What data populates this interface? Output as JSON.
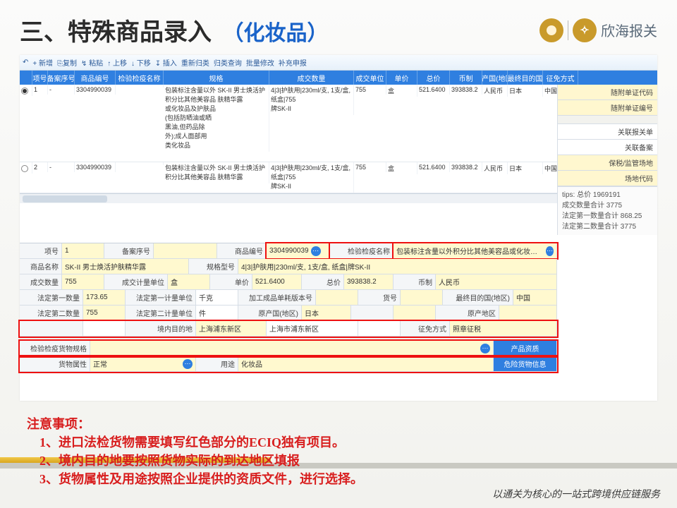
{
  "page_title": {
    "main": "三、特殊商品录入",
    "sub": "（化妆品）"
  },
  "brand": "欣海报关",
  "toolbar": [
    "↶",
    "+ 新增",
    "⎘复制",
    "↯ 粘贴",
    "↑ 上移",
    "↓ 下移",
    "↧ 插入",
    "重新归类",
    "归类查询",
    "批量修改",
    "补充申报"
  ],
  "columns": [
    "",
    "项号",
    "备案序号",
    "商品编号",
    "检验检疫名称",
    "规格",
    "成交数量",
    "成交单位",
    "单价",
    "总价",
    "币制",
    "原产国(地区)",
    "最终目的国",
    "征免方式"
  ],
  "rows": [
    {
      "sel": true,
      "idx": "1",
      "seq": "-",
      "code": "3304990039",
      "desc": "包装标注含量以外 SK-II 男士焕活护\n积分比其他美容品 肤精华露\n或化妆品及护肤品\n(包括防晒油或晒\n黑油,但药品除\n外);成人面部用\n类化妆品",
      "spec": "4|3|护肤用|230ml/支, 1支/盒, 纸盒|755\n牌SK-II",
      "qty": "755",
      "unit": "盒",
      "price": "521.6400",
      "total": "393838.2",
      "curr": "人民币",
      "orig": "日本",
      "dest": "中国",
      "duty": "照章征税"
    },
    {
      "sel": false,
      "idx": "2",
      "seq": "-",
      "code": "3304990039",
      "desc": "包装标注含量以外 SK-II 男士焕活护\n积分比其他美容品 肤精华露",
      "spec": "4|3|护肤用|230ml/支, 1支/盒, 纸盒|755\n牌SK-II",
      "qty": "755",
      "unit": "盒",
      "price": "521.6400",
      "total": "393838.2",
      "curr": "人民币",
      "orig": "日本",
      "dest": "中国",
      "duty": "照章征税"
    }
  ],
  "side_rows": [
    {
      "t": "随附单证代码",
      "yl": true
    },
    {
      "t": "随附单证编号",
      "yl": true
    },
    {
      "gap": true
    },
    {
      "t": "关联报关单",
      "yl": false
    },
    {
      "t": "关联备案",
      "yl": false
    },
    {
      "t": "保税/监管场地",
      "yl": true
    },
    {
      "t": "场地代码",
      "yl": true
    }
  ],
  "tips": {
    "header": "tips: 总价 1969191",
    "lines": [
      "成交数量合计 3775",
      "法定第一数量合计 868.25",
      "法定第二数量合计 3775"
    ]
  },
  "form": {
    "r1": {
      "l1": "项号",
      "v1": "1",
      "l2": "备案序号",
      "v2": "",
      "l3": "商品编号",
      "v3": "3304990039",
      "l4": "检验检疫名称",
      "v4": "包装标注含量以外积分比其他美容品或化妆品及护肤品(包括防"
    },
    "r2": {
      "l1": "商品名称",
      "v1": "SK-II 男士焕活护肤精华露",
      "l2": "规格型号",
      "v2": "4|3|护肤用|230ml/支, 1支/盒, 纸盒|牌SK-II"
    },
    "r3": {
      "l1": "成交数量",
      "v1": "755",
      "l2": "成交计量单位",
      "v2": "盒",
      "l3": "单价",
      "v3": "521.6400",
      "l4": "总价",
      "v4": "393838.2",
      "l5": "币制",
      "v5": "人民币"
    },
    "r4": {
      "l1": "法定第一数量",
      "v1": "173.65",
      "l2": "法定第一计量单位",
      "v2": "千克",
      "l3": "加工成品单耗版本号",
      "v3": "",
      "l4": "货号",
      "v4": "",
      "l5": "最终目的国(地区)",
      "v5": "中国"
    },
    "r5": {
      "l1": "法定第二数量",
      "v1": "755",
      "l2": "法定第二计量单位",
      "v2": "件",
      "l3": "原产国(地区)",
      "v3": "日本",
      "l4": "",
      "v4": "",
      "l5": "原产地区",
      "v5": ""
    },
    "r6": {
      "l1": "",
      "v1": "",
      "l2": "境内目的地",
      "v2": "上海浦东新区",
      "l3": "",
      "v3": "上海市浦东新区",
      "l4": "",
      "v4": "",
      "l5": "征免方式",
      "v5": "照章征税"
    },
    "r7": {
      "l1": "检验检疫货物规格",
      "v1": "",
      "btn1": "产品资质"
    },
    "r8": {
      "l1": "货物属性",
      "v1": "正常",
      "l2": "用途",
      "v2": "化妆品",
      "btn1": "危险货物信息"
    }
  },
  "notes": {
    "h": "注意事项：",
    "items": [
      "1、进口法检货物需要填写红色部分的ECIQ独有项目。",
      "2、境内目的地要按照货物实际的到达地区填报",
      "3、货物属性及用途按照企业提供的资质文件，进行选择。"
    ]
  },
  "footer": "以通关为核心的一站式跨境供应链服务",
  "colors": {
    "accent": "#2f7fe0",
    "highlight_red": "#e11",
    "yellow": "#fff9cf",
    "header_text": "#1a63c9"
  }
}
